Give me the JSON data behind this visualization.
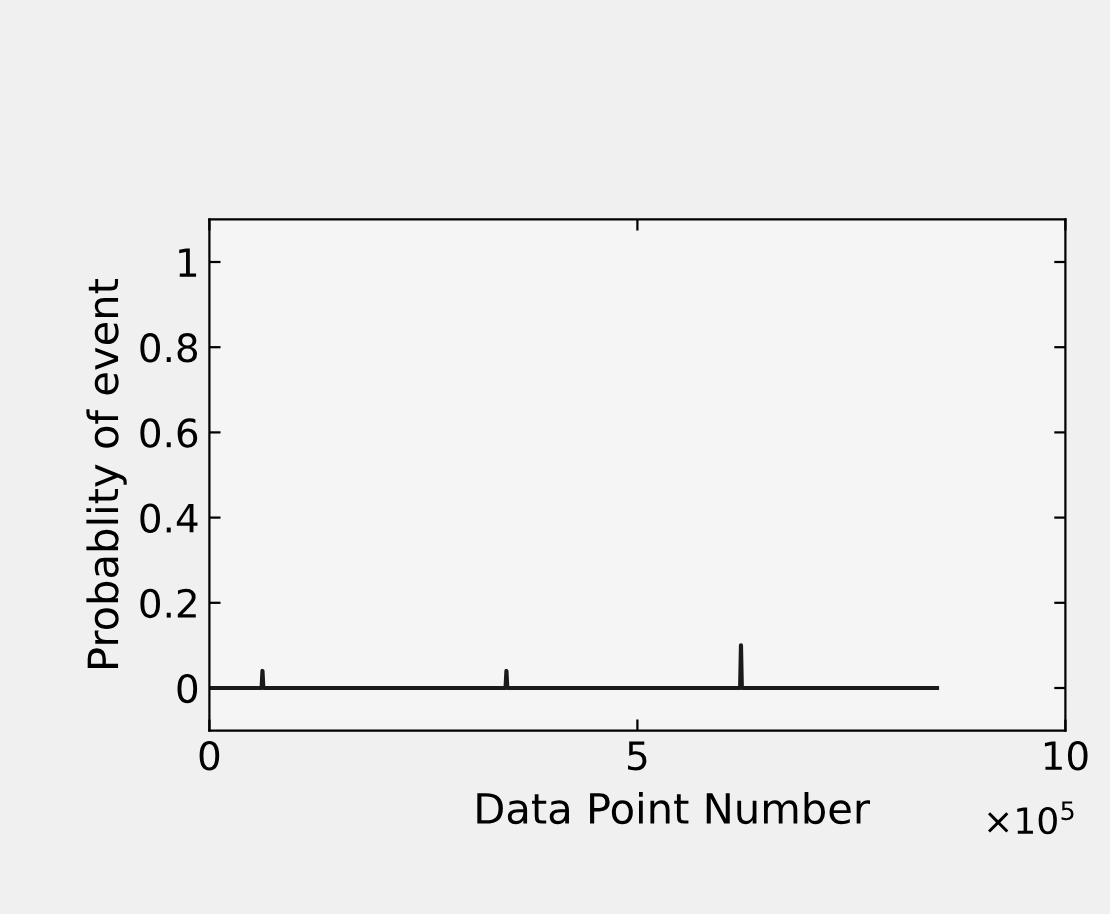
{
  "chart_data": {
    "type": "line",
    "xlabel": "Data Point Number",
    "ylabel": "Probablity of event",
    "series": [
      {
        "color": "#1a1a1a",
        "x": [
          0,
          0.61,
          0.62,
          0.63,
          3.46,
          3.47,
          3.48,
          6.2,
          6.21,
          6.22,
          8.5
        ],
        "values": [
          0,
          0,
          0.04,
          0,
          0,
          0.04,
          0,
          0,
          0.1,
          0,
          0
        ]
      }
    ],
    "xlim": [
      0,
      10
    ],
    "xticks": [
      0,
      5,
      10
    ],
    "ylim": [
      -0.1,
      1.1
    ],
    "yticks": [
      0,
      0.2,
      0.4,
      0.6,
      0.8,
      1
    ],
    "annotations": [
      "×10$^{5}$"
    ],
    "grid": false,
    "legend": false
  }
}
